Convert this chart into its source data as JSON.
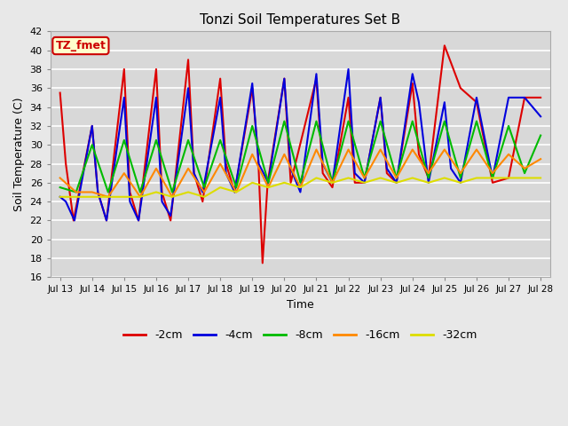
{
  "title": "Tonzi Soil Temperatures Set B",
  "xlabel": "Time",
  "ylabel": "Soil Temperature (C)",
  "ylim": [
    16,
    42
  ],
  "yticks": [
    16,
    18,
    20,
    22,
    24,
    26,
    28,
    30,
    32,
    34,
    36,
    38,
    40,
    42
  ],
  "x_labels": [
    "Jul 13",
    "Jul 14",
    "Jul 15",
    "Jul 16",
    "Jul 17",
    "Jul 18",
    "Jul 19",
    "Jul 20",
    "Jul 21",
    "Jul 22",
    "Jul 23",
    "Jul 24",
    "Jul 25",
    "Jul 26",
    "Jul 27",
    "Jul 28"
  ],
  "annotation_text": "TZ_fmet",
  "annotation_color": "#cc0000",
  "fig_bg": "#e8e8e8",
  "ax_bg": "#d8d8d8",
  "grid_color": "#ffffff",
  "series_colors": {
    "-2cm": "#dd0000",
    "-4cm": "#0000dd",
    "-8cm": "#00bb00",
    "-16cm": "#ff8800",
    "-32cm": "#dddd00"
  },
  "r2_x": [
    0,
    0.18,
    0.42,
    1.0,
    1.18,
    1.45,
    2.0,
    2.18,
    2.45,
    3.0,
    3.18,
    3.45,
    4.0,
    4.18,
    4.45,
    5.0,
    5.18,
    5.45,
    6.0,
    6.18,
    6.32,
    6.48,
    7.0,
    7.2,
    8.0,
    8.2,
    8.5,
    9.0,
    9.2,
    9.5,
    10.0,
    10.2,
    10.5,
    11.0,
    11.2,
    11.5,
    12.0,
    12.5,
    13.0,
    13.5,
    14.0,
    14.5,
    15.0
  ],
  "r2_y": [
    35.5,
    28,
    22,
    32,
    25,
    22,
    38,
    25,
    22,
    38,
    25,
    22,
    39,
    27,
    24,
    37,
    28,
    25,
    36,
    29,
    17.5,
    26,
    37,
    26,
    37,
    27,
    25.5,
    35,
    26,
    26,
    35,
    27,
    26,
    36.5,
    29,
    26.5,
    40.5,
    36,
    34.5,
    26,
    26.5,
    35,
    35
  ],
  "r4_x": [
    0,
    0.18,
    0.45,
    1.0,
    1.18,
    1.45,
    2.0,
    2.18,
    2.45,
    3.0,
    3.18,
    3.45,
    4.0,
    4.18,
    4.45,
    5.0,
    5.18,
    5.45,
    6.0,
    6.2,
    6.5,
    7.0,
    7.2,
    7.5,
    8.0,
    8.2,
    8.5,
    9.0,
    9.2,
    9.5,
    10.0,
    10.2,
    10.5,
    11.0,
    11.2,
    11.5,
    12.0,
    12.2,
    12.5,
    13.0,
    13.5,
    14.0,
    14.5,
    15.0
  ],
  "r4_y": [
    24.5,
    24,
    22,
    32,
    25,
    22,
    35,
    24,
    22,
    35,
    24,
    22.5,
    36,
    27,
    25,
    35,
    27,
    25,
    36.5,
    28,
    26,
    37,
    27.5,
    25,
    37.5,
    28,
    26,
    38,
    27,
    26,
    35,
    27.5,
    26,
    37.5,
    34.5,
    26,
    34.5,
    27.5,
    26,
    35,
    26.5,
    35,
    35,
    33
  ],
  "r8_x": [
    0,
    0.5,
    1.0,
    1.5,
    2.0,
    2.5,
    3.0,
    3.5,
    4.0,
    4.5,
    5.0,
    5.5,
    6.0,
    6.5,
    7.0,
    7.5,
    8.0,
    8.5,
    9.0,
    9.5,
    10.0,
    10.5,
    11.0,
    11.5,
    12.0,
    12.5,
    13.0,
    13.5,
    14.0,
    14.5,
    15.0
  ],
  "r8_y": [
    25.5,
    25,
    30,
    25,
    30.5,
    25,
    30.5,
    25,
    30.5,
    25.5,
    30.5,
    25.5,
    32,
    26,
    32.5,
    26,
    32.5,
    26,
    32.5,
    26.5,
    32.5,
    26.5,
    32.5,
    26.5,
    32.5,
    26.5,
    32.5,
    26.5,
    32,
    27,
    31
  ],
  "r16_x": [
    0,
    0.5,
    1.0,
    1.5,
    2.0,
    2.5,
    3.0,
    3.5,
    4.0,
    4.5,
    5.0,
    5.5,
    6.0,
    6.5,
    7.0,
    7.5,
    8.0,
    8.5,
    9.0,
    9.5,
    10.0,
    10.5,
    11.0,
    11.5,
    12.0,
    12.5,
    13.0,
    13.5,
    14.0,
    14.5,
    15.0
  ],
  "r16_y": [
    26.5,
    25,
    25,
    24.5,
    27,
    24.5,
    27.5,
    24.5,
    27.5,
    25,
    28,
    25,
    29,
    25.5,
    29,
    25.5,
    29.5,
    26,
    29.5,
    26.5,
    29.5,
    26.5,
    29.5,
    27,
    29.5,
    27,
    29.5,
    27,
    29,
    27.5,
    28.5
  ],
  "r32_x": [
    0,
    0.5,
    1.0,
    1.5,
    2.0,
    2.5,
    3.0,
    3.5,
    4.0,
    4.5,
    5.0,
    5.5,
    6.0,
    6.5,
    7.0,
    7.5,
    8.0,
    8.5,
    9.0,
    9.5,
    10.0,
    10.5,
    11.0,
    11.5,
    12.0,
    12.5,
    13.0,
    13.5,
    14.0,
    14.5,
    15.0
  ],
  "r32_y": [
    24.5,
    24.5,
    24.5,
    24.5,
    24.5,
    24.5,
    25,
    24.5,
    25,
    24.5,
    25.5,
    25,
    26,
    25.5,
    26,
    25.5,
    26.5,
    26,
    26.5,
    26,
    26.5,
    26,
    26.5,
    26,
    26.5,
    26,
    26.5,
    26.5,
    26.5,
    26.5,
    26.5
  ]
}
